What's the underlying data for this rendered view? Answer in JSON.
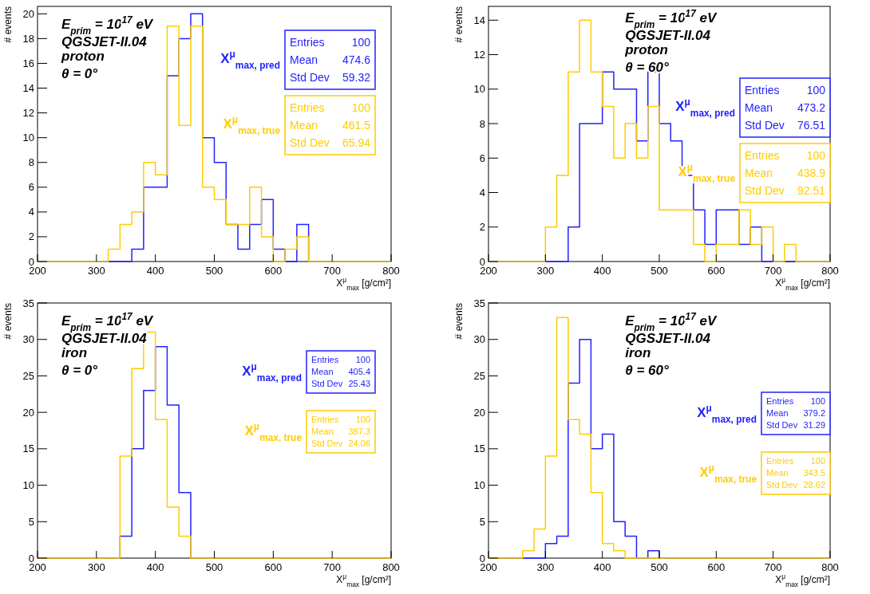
{
  "chart_data": [
    {
      "type": "histogram",
      "xlabel": "X$^{μ}$$_{max}$ [g/cm²]",
      "ylabel": "# events",
      "bins": [
        200,
        220,
        240,
        260,
        280,
        300,
        320,
        340,
        360,
        380,
        400,
        420,
        440,
        460,
        480,
        500,
        520,
        540,
        560,
        580,
        600,
        620,
        640,
        660,
        680,
        700,
        720,
        740,
        760,
        780,
        800
      ],
      "xlim": [
        200,
        800
      ],
      "xticks": [
        200,
        300,
        400,
        500,
        600,
        700,
        800
      ],
      "ylim": [
        0,
        20.6
      ],
      "yticks": [
        0,
        2,
        4,
        6,
        8,
        10,
        12,
        14,
        16,
        18,
        20
      ],
      "legend": "right",
      "annotations": [
        "E$_{prim}$ = 10$^{17}$ eV",
        "QGSJET-II.04",
        "proton",
        "θ = 0°",
        "Entries",
        "100",
        "Mean",
        "474.6",
        "Std Dev",
        "59.32",
        "Entries",
        "100",
        "Mean",
        "461.5",
        "Std Dev",
        "65.94"
      ],
      "series": [
        {
          "name": "X$^{μ}$$_{max, pred}$",
          "color": "#2222ff",
          "values": [
            0,
            0,
            0,
            0,
            0,
            0,
            0,
            0,
            1,
            6,
            6,
            15,
            18,
            20,
            10,
            8,
            3,
            1,
            3,
            5,
            1,
            0,
            3,
            0,
            0,
            0,
            0,
            0,
            0,
            0
          ]
        },
        {
          "name": "X$^{μ}$$_{max, true}$",
          "color": "#ffcc00",
          "values": [
            0,
            0,
            0,
            0,
            0,
            0,
            1,
            3,
            4,
            8,
            7,
            19,
            11,
            19,
            6,
            5,
            3,
            3,
            6,
            2,
            0,
            1,
            2,
            0,
            0,
            0,
            0,
            0,
            0,
            0
          ]
        }
      ]
    },
    {
      "type": "histogram",
      "xlabel": "X$^{μ}$$_{max}$ [g/cm²]",
      "ylabel": "# events",
      "bins": [
        200,
        220,
        240,
        260,
        280,
        300,
        320,
        340,
        360,
        380,
        400,
        420,
        440,
        460,
        480,
        500,
        520,
        540,
        560,
        580,
        600,
        620,
        640,
        660,
        680,
        700,
        720,
        740,
        760,
        780,
        800
      ],
      "xlim": [
        200,
        800
      ],
      "xticks": [
        200,
        300,
        400,
        500,
        600,
        700,
        800
      ],
      "ylim": [
        0,
        14.8
      ],
      "yticks": [
        0,
        2,
        4,
        6,
        8,
        10,
        12,
        14
      ],
      "legend": "right",
      "annotations": [
        "E$_{prim}$ = 10$^{17}$ eV",
        "QGSJET-II.04",
        "proton",
        "θ = 60°",
        "Entries",
        "100",
        "Mean",
        "473.2",
        "Std Dev",
        "76.51",
        "Entries",
        "100",
        "Mean",
        "438.9",
        "Std Dev",
        "92.51"
      ],
      "series": [
        {
          "name": "X$^{μ}$$_{max, pred}$",
          "color": "#2222ff",
          "values": [
            0,
            0,
            0,
            0,
            0,
            0,
            0,
            2,
            8,
            8,
            11,
            10,
            10,
            7,
            11,
            8,
            7,
            5,
            3,
            1,
            3,
            3,
            1,
            2,
            0,
            0,
            0,
            0,
            0,
            0
          ]
        },
        {
          "name": "X$^{μ}$$_{max, true}$",
          "color": "#ffcc00",
          "values": [
            0,
            0,
            0,
            0,
            0,
            2,
            5,
            11,
            14,
            11,
            9,
            6,
            8,
            6,
            9,
            3,
            3,
            3,
            1,
            0,
            1,
            1,
            3,
            1,
            2,
            0,
            1,
            0,
            0,
            0
          ]
        }
      ]
    },
    {
      "type": "histogram",
      "xlabel": "X$^{μ}$$_{max}$ [g/cm²]",
      "ylabel": "# events",
      "bins": [
        200,
        220,
        240,
        260,
        280,
        300,
        320,
        340,
        360,
        380,
        400,
        420,
        440,
        460,
        480,
        500,
        520,
        540,
        560,
        580,
        600,
        620,
        640,
        660,
        680,
        700,
        720,
        740,
        760,
        780,
        800
      ],
      "xlim": [
        200,
        800
      ],
      "xticks": [
        200,
        300,
        400,
        500,
        600,
        700,
        800
      ],
      "ylim": [
        0,
        35
      ],
      "yticks": [
        0,
        5,
        10,
        15,
        20,
        25,
        30,
        35
      ],
      "legend": "right",
      "annotations": [
        "E$_{prim}$ = 10$^{17}$ eV",
        "QGSJET-II.04",
        "iron",
        "θ = 0°",
        "Entries",
        "100",
        "Mean",
        "405.4",
        "Std Dev",
        "25.43",
        "Entries",
        "100",
        "Mean",
        "387.3",
        "Std Dev",
        "24.06"
      ],
      "series": [
        {
          "name": "X$^{μ}$$_{max, pred}$",
          "color": "#2222ff",
          "values": [
            0,
            0,
            0,
            0,
            0,
            0,
            0,
            3,
            15,
            23,
            29,
            21,
            9,
            0,
            0,
            0,
            0,
            0,
            0,
            0,
            0,
            0,
            0,
            0,
            0,
            0,
            0,
            0,
            0,
            0
          ]
        },
        {
          "name": "X$^{μ}$$_{max, true}$",
          "color": "#ffcc00",
          "values": [
            0,
            0,
            0,
            0,
            0,
            0,
            0,
            14,
            26,
            31,
            19,
            7,
            3,
            0,
            0,
            0,
            0,
            0,
            0,
            0,
            0,
            0,
            0,
            0,
            0,
            0,
            0,
            0,
            0,
            0
          ]
        }
      ]
    },
    {
      "type": "histogram",
      "xlabel": "X$^{μ}$$_{max}$ [g/cm²]",
      "ylabel": "# events",
      "bins": [
        200,
        220,
        240,
        260,
        280,
        300,
        320,
        340,
        360,
        380,
        400,
        420,
        440,
        460,
        480,
        500,
        520,
        540,
        560,
        580,
        600,
        620,
        640,
        660,
        680,
        700,
        720,
        740,
        760,
        780,
        800
      ],
      "xlim": [
        200,
        800
      ],
      "xticks": [
        200,
        300,
        400,
        500,
        600,
        700,
        800
      ],
      "ylim": [
        0,
        35
      ],
      "yticks": [
        0,
        5,
        10,
        15,
        20,
        25,
        30,
        35
      ],
      "legend": "right",
      "annotations": [
        "E$_{prim}$ = 10$^{17}$ eV",
        "QGSJET-II.04",
        "iron",
        "θ = 60°",
        "Entries",
        "100",
        "Mean",
        "379.2",
        "Std Dev",
        "31.29",
        "Entries",
        "100",
        "Mean",
        "343.5",
        "Std Dev",
        "28.62"
      ],
      "series": [
        {
          "name": "X$^{μ}$$_{max, pred}$",
          "color": "#2222ff",
          "values": [
            0,
            0,
            0,
            0,
            0,
            2,
            3,
            24,
            30,
            15,
            17,
            5,
            3,
            0,
            1,
            0,
            0,
            0,
            0,
            0,
            0,
            0,
            0,
            0,
            0,
            0,
            0,
            0,
            0,
            0
          ]
        },
        {
          "name": "X$^{μ}$$_{max, true}$",
          "color": "#ffcc00",
          "values": [
            0,
            0,
            0,
            1,
            4,
            14,
            33,
            19,
            17,
            9,
            2,
            1,
            0,
            0,
            0,
            0,
            0,
            0,
            0,
            0,
            0,
            0,
            0,
            0,
            0,
            0,
            0,
            0,
            0,
            0
          ]
        }
      ]
    }
  ]
}
